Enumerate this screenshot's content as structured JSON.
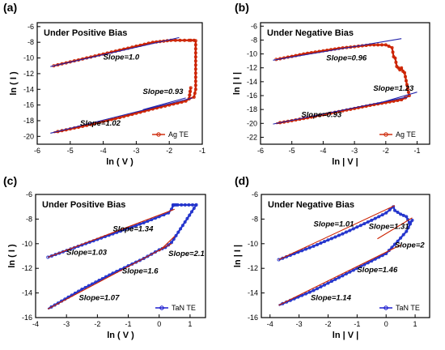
{
  "chart_data": [
    {
      "type": "line",
      "panel_label": "(a)",
      "title": "Under Positive Bias",
      "xlabel": "ln ( V )",
      "ylabel": "ln ( I )",
      "xlim": [
        -6,
        -1
      ],
      "ylim": [
        -21,
        -5.5
      ],
      "xticks": [
        -6,
        -5,
        -4,
        -3,
        -2,
        -1
      ],
      "yticks": [
        -20,
        -18,
        -16,
        -14,
        -12,
        -10,
        -8,
        -6
      ],
      "legend": {
        "label": "Ag TE",
        "placement": "bottom-right",
        "color": "#cc2200"
      },
      "data_color": "#cc2200",
      "fit_color": "#2222aa",
      "series": [
        {
          "kind": "data",
          "x": [
            -5.5,
            -4.5,
            -3.5,
            -2.5,
            -1.95,
            -1.4,
            -1.35,
            -1.25,
            -1.2,
            -1.2,
            -1.25,
            -1.4,
            -1.35,
            -1.4,
            -1.5,
            -2.0,
            -2.5,
            -3.5,
            -4.5,
            -5.5
          ],
          "y": [
            -11.0,
            -10.0,
            -9.0,
            -8.0,
            -7.75,
            -7.75,
            -7.75,
            -7.75,
            -7.8,
            -14.0,
            -15.0,
            -15.2,
            -13.8,
            -15.2,
            -15.5,
            -16.0,
            -16.5,
            -17.6,
            -18.6,
            -19.5
          ]
        }
      ],
      "fits": [
        {
          "x": [
            -5.6,
            -1.7
          ],
          "y": [
            -11.1,
            -7.4
          ]
        },
        {
          "x": [
            -2.8,
            -1.5
          ],
          "y": [
            -16.6,
            -15.1
          ]
        },
        {
          "x": [
            -5.6,
            -1.3
          ],
          "y": [
            -19.6,
            -15.1
          ]
        }
      ],
      "annotations": [
        {
          "text": "Slope=1.0",
          "x": -4.0,
          "y": -10.2
        },
        {
          "text": "Slope=0.93",
          "x": -2.8,
          "y": -14.6
        },
        {
          "text": "Slope=1.02",
          "x": -4.7,
          "y": -18.6
        }
      ]
    },
    {
      "type": "line",
      "panel_label": "(b)",
      "title": "Under Negative Bias",
      "xlabel": "ln | V |",
      "ylabel": "ln | I |",
      "xlim": [
        -6,
        -0.6
      ],
      "ylim": [
        -23,
        -5.5
      ],
      "xticks": [
        -6,
        -5,
        -4,
        -3,
        -2,
        -1
      ],
      "yticks": [
        -22,
        -20,
        -18,
        -16,
        -14,
        -12,
        -10,
        -8,
        -6
      ],
      "legend": {
        "label": "Ag TE",
        "placement": "bottom-right",
        "color": "#cc2200"
      },
      "data_color": "#cc2200",
      "fit_color": "#2222aa",
      "series": [
        {
          "kind": "data",
          "x": [
            -5.5,
            -4.5,
            -3.5,
            -2.5,
            -2.0,
            -1.8,
            -1.75,
            -1.7,
            -1.65,
            -1.6,
            -1.55,
            -1.5,
            -1.45,
            -1.4,
            -1.3,
            -1.25,
            -1.5,
            -2.0,
            -2.5,
            -3.5,
            -4.5,
            -5.5
          ],
          "y": [
            -10.8,
            -9.9,
            -9.2,
            -8.7,
            -8.7,
            -9.1,
            -10.4,
            -10.6,
            -11.8,
            -12.0,
            -12.3,
            -12.0,
            -12.5,
            -12.7,
            -15.0,
            -16.0,
            -16.6,
            -17.0,
            -17.4,
            -18.3,
            -19.2,
            -20.0
          ]
        }
      ],
      "fits": [
        {
          "x": [
            -5.6,
            -1.5
          ],
          "y": [
            -10.9,
            -7.8
          ]
        },
        {
          "x": [
            -2.3,
            -1.0
          ],
          "y": [
            -17.2,
            -15.5
          ]
        },
        {
          "x": [
            -5.6,
            -1.3
          ],
          "y": [
            -20.1,
            -16.2
          ]
        }
      ],
      "annotations": [
        {
          "text": "Slope=0.96",
          "x": -3.9,
          "y": -10.9
        },
        {
          "text": "Slope=1.23",
          "x": -2.4,
          "y": -15.3
        },
        {
          "text": "Slope=0.93",
          "x": -4.7,
          "y": -19.1
        }
      ]
    },
    {
      "type": "line",
      "panel_label": "(c)",
      "title": "Under Positive Bias",
      "xlabel": "ln ( V )",
      "ylabel": "ln ( I )",
      "xlim": [
        -4,
        1.5
      ],
      "ylim": [
        -16,
        -6
      ],
      "xticks": [
        -4,
        -3,
        -2,
        -1,
        0,
        1
      ],
      "yticks": [
        -16,
        -14,
        -12,
        -10,
        -8,
        -6
      ],
      "legend": {
        "label": "TaN TE",
        "placement": "bottom-right",
        "color": "#1111cc"
      },
      "data_color": "#2233cc",
      "fit_color": "#cc2200",
      "series": [
        {
          "kind": "data",
          "x": [
            -3.6,
            -2.5,
            -1.5,
            -0.5,
            0.0,
            0.3,
            0.4,
            0.45,
            0.45,
            0.5,
            0.55,
            0.6,
            1.2,
            1.2,
            0.4,
            0.2,
            0.0,
            -0.5,
            -1.5,
            -2.5,
            -3.6
          ],
          "y": [
            -11.1,
            -10.1,
            -9.2,
            -8.3,
            -7.8,
            -7.5,
            -7.2,
            -6.9,
            -6.85,
            -6.85,
            -6.85,
            -6.85,
            -6.85,
            -6.85,
            -9.9,
            -10.3,
            -10.5,
            -11.2,
            -12.4,
            -13.7,
            -15.3
          ]
        }
      ],
      "fits": [
        {
          "x": [
            -3.6,
            0.5
          ],
          "y": [
            -11.1,
            -7.2
          ]
        },
        {
          "x": [
            0.0,
            0.5
          ],
          "y": [
            -10.6,
            -9.4
          ]
        },
        {
          "x": [
            -3.6,
            0.4
          ],
          "y": [
            -15.3,
            -10.0
          ]
        }
      ],
      "annotations": [
        {
          "text": "Slope=1.34",
          "x": -1.5,
          "y": -9.0
        },
        {
          "text": "Slope=1.03",
          "x": -3.0,
          "y": -10.9
        },
        {
          "text": "Slope=2.1",
          "x": 0.3,
          "y": -11.0
        },
        {
          "text": "Slope=1.6",
          "x": -1.2,
          "y": -12.4
        },
        {
          "text": "Slope=1.07",
          "x": -2.6,
          "y": -14.6
        }
      ]
    },
    {
      "type": "line",
      "panel_label": "(d)",
      "title": "Under Negative Bias",
      "xlabel": "ln | V |",
      "ylabel": "ln | I |",
      "xlim": [
        -4.3,
        1.5
      ],
      "ylim": [
        -16,
        -6
      ],
      "xticks": [
        -4,
        -3,
        -2,
        -1,
        0,
        1
      ],
      "yticks": [
        -16,
        -14,
        -12,
        -10,
        -8,
        -6
      ],
      "legend": {
        "label": "TaN TE",
        "placement": "bottom-right",
        "color": "#1111cc"
      },
      "data_color": "#2233cc",
      "fit_color": "#cc2200",
      "series": [
        {
          "kind": "data",
          "x": [
            -3.7,
            -2.5,
            -1.5,
            -0.5,
            0.0,
            0.25,
            0.3,
            0.5,
            0.7,
            0.8,
            0.9,
            0.7,
            0.4,
            0.0,
            -0.5,
            -1.5,
            -2.5,
            -3.7
          ],
          "y": [
            -11.3,
            -10.2,
            -9.2,
            -8.1,
            -7.5,
            -7.0,
            -7.3,
            -7.6,
            -7.8,
            -8.3,
            -8.1,
            -9.0,
            -9.8,
            -10.8,
            -11.4,
            -12.6,
            -13.8,
            -15.0
          ]
        }
      ],
      "fits": [
        {
          "x": [
            -3.7,
            0.3
          ],
          "y": [
            -11.3,
            -6.9
          ]
        },
        {
          "x": [
            -0.3,
            0.9
          ],
          "y": [
            -9.6,
            -7.9
          ]
        },
        {
          "x": [
            -3.7,
            0.5
          ],
          "y": [
            -15.0,
            -10.1
          ]
        }
      ],
      "annotations": [
        {
          "text": "Slope=1.01",
          "x": -2.5,
          "y": -8.6
        },
        {
          "text": "Slope=1.31",
          "x": -0.6,
          "y": -8.8
        },
        {
          "text": "Slope=2",
          "x": 0.3,
          "y": -10.3
        },
        {
          "text": "Slope=1.46",
          "x": -1.0,
          "y": -12.3
        },
        {
          "text": "Slope=1.14",
          "x": -2.6,
          "y": -14.6
        }
      ]
    }
  ]
}
